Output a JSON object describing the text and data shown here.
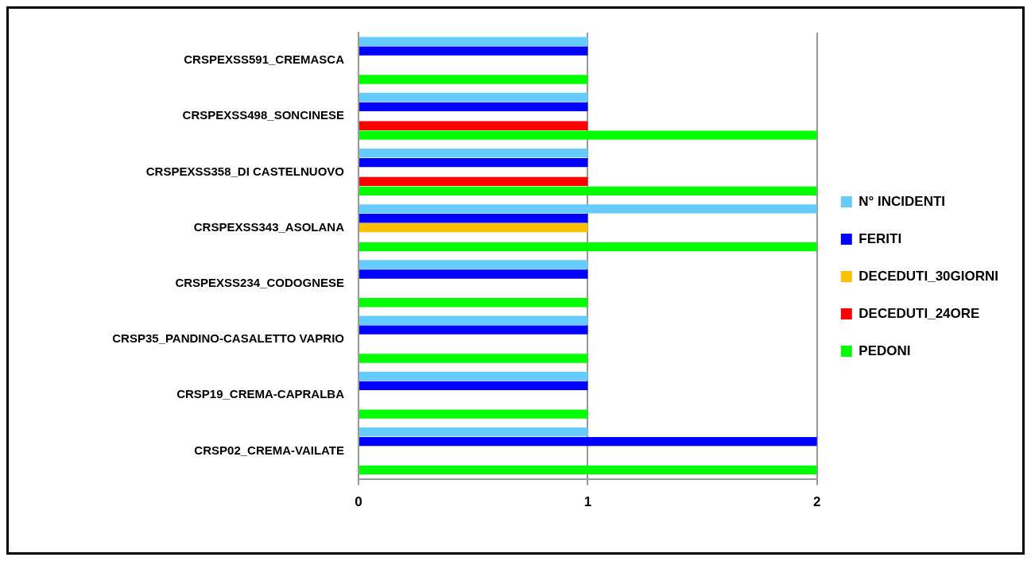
{
  "chart_data": {
    "type": "bar",
    "orientation": "horizontal",
    "categories": [
      "CRSPEXSS591_CREMASCA",
      "CRSPEXSS498_SONCINESE",
      "CRSPEXSS358_DI CASTELNUOVO",
      "CRSPEXSS343_ASOLANA",
      "CRSPEXSS234_CODOGNESE",
      "CRSP35_PANDINO-CASALETTO VAPRIO",
      "CRSP19_CREMA-CAPRALBA",
      "CRSP02_CREMA-VAILATE"
    ],
    "series": [
      {
        "name": "N° INCIDENTI",
        "color": "#66ccff",
        "values": [
          1,
          1,
          1,
          2,
          1,
          1,
          1,
          1
        ]
      },
      {
        "name": "FERITI",
        "color": "#0000ff",
        "values": [
          1,
          1,
          1,
          1,
          1,
          1,
          1,
          2
        ]
      },
      {
        "name": "DECEDUTI_30GIORNI",
        "color": "#ffc000",
        "values": [
          0,
          0,
          0,
          1,
          0,
          0,
          0,
          0
        ]
      },
      {
        "name": "DECEDUTI_24ORE",
        "color": "#ff0000",
        "values": [
          0,
          1,
          1,
          0,
          0,
          0,
          0,
          0
        ]
      },
      {
        "name": "PEDONI",
        "color": "#00ff00",
        "values": [
          1,
          2,
          2,
          2,
          1,
          1,
          1,
          2
        ]
      }
    ],
    "xlim": [
      0,
      2
    ],
    "xticks": [
      0,
      1,
      2
    ],
    "grid": "x",
    "legend": "right"
  }
}
